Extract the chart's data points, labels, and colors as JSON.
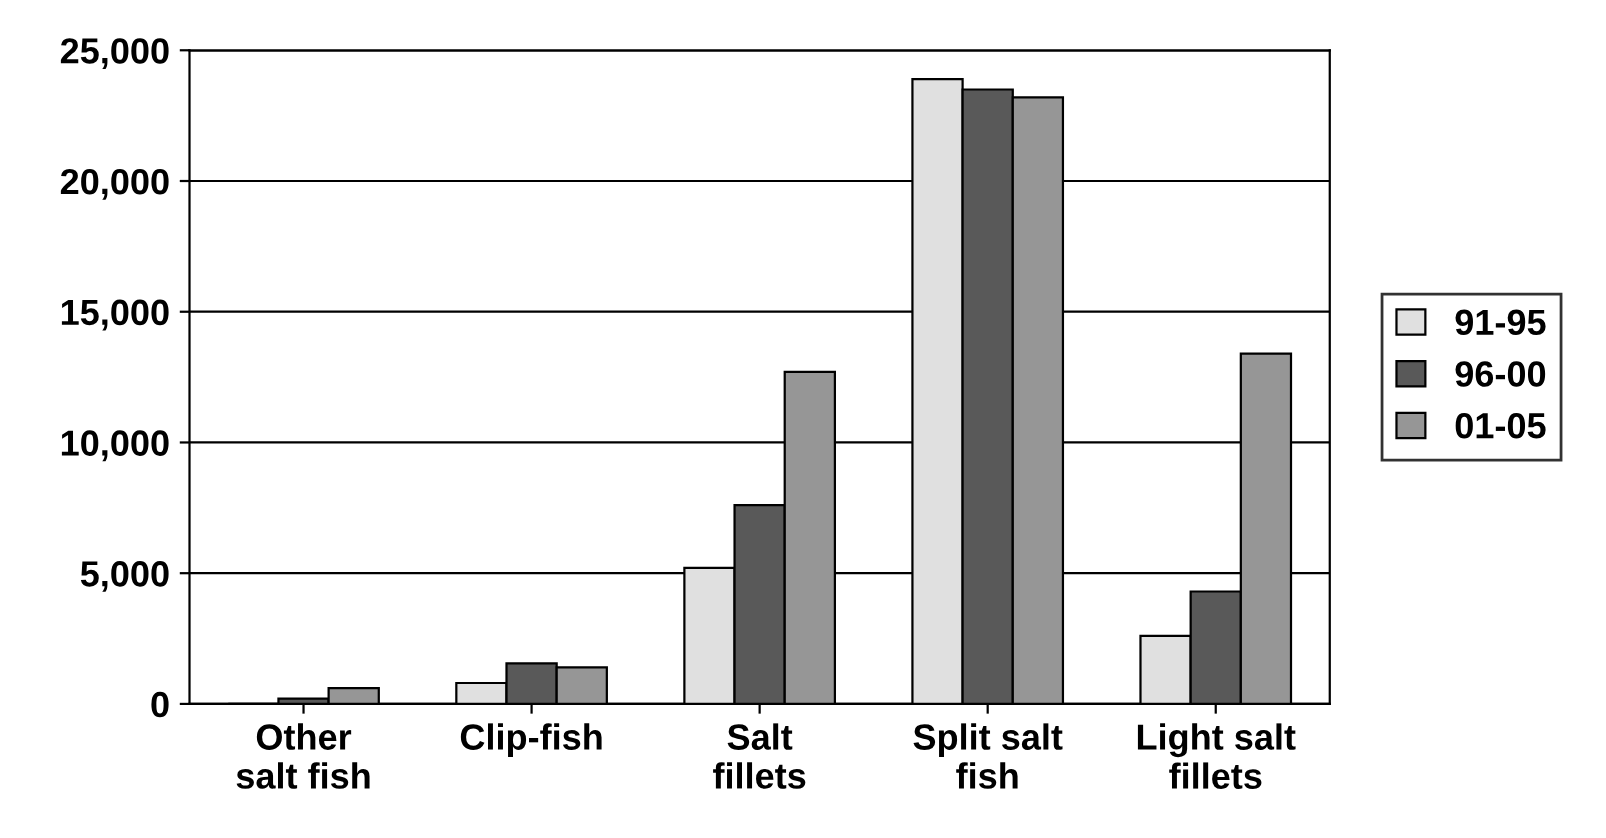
{
  "chart_data": {
    "type": "bar",
    "categories": [
      "Other\nsalt fish",
      "Clip-fish",
      "Salt\nfillets",
      "Split salt\nfish",
      "Light salt\nfillets"
    ],
    "series": [
      {
        "name": "91-95",
        "color": "#e0e0e0",
        "values": [
          null,
          800,
          5200,
          23900,
          2600
        ]
      },
      {
        "name": "96-00",
        "color": "#595959",
        "values": [
          200,
          1550,
          7600,
          23500,
          4300
        ]
      },
      {
        "name": "01-05",
        "color": "#969696",
        "values": [
          600,
          1400,
          12700,
          23200,
          13400
        ]
      }
    ],
    "ylim": [
      0,
      25000
    ],
    "yticks": [
      {
        "value": 0,
        "label": "0"
      },
      {
        "value": 5000,
        "label": "5,000"
      },
      {
        "value": 10000,
        "label": "10,000"
      },
      {
        "value": 15000,
        "label": "15,000"
      },
      {
        "value": 20000,
        "label": "20,000"
      },
      {
        "value": 25000,
        "label": "25,000"
      }
    ],
    "grid": "y",
    "legend": "right"
  }
}
